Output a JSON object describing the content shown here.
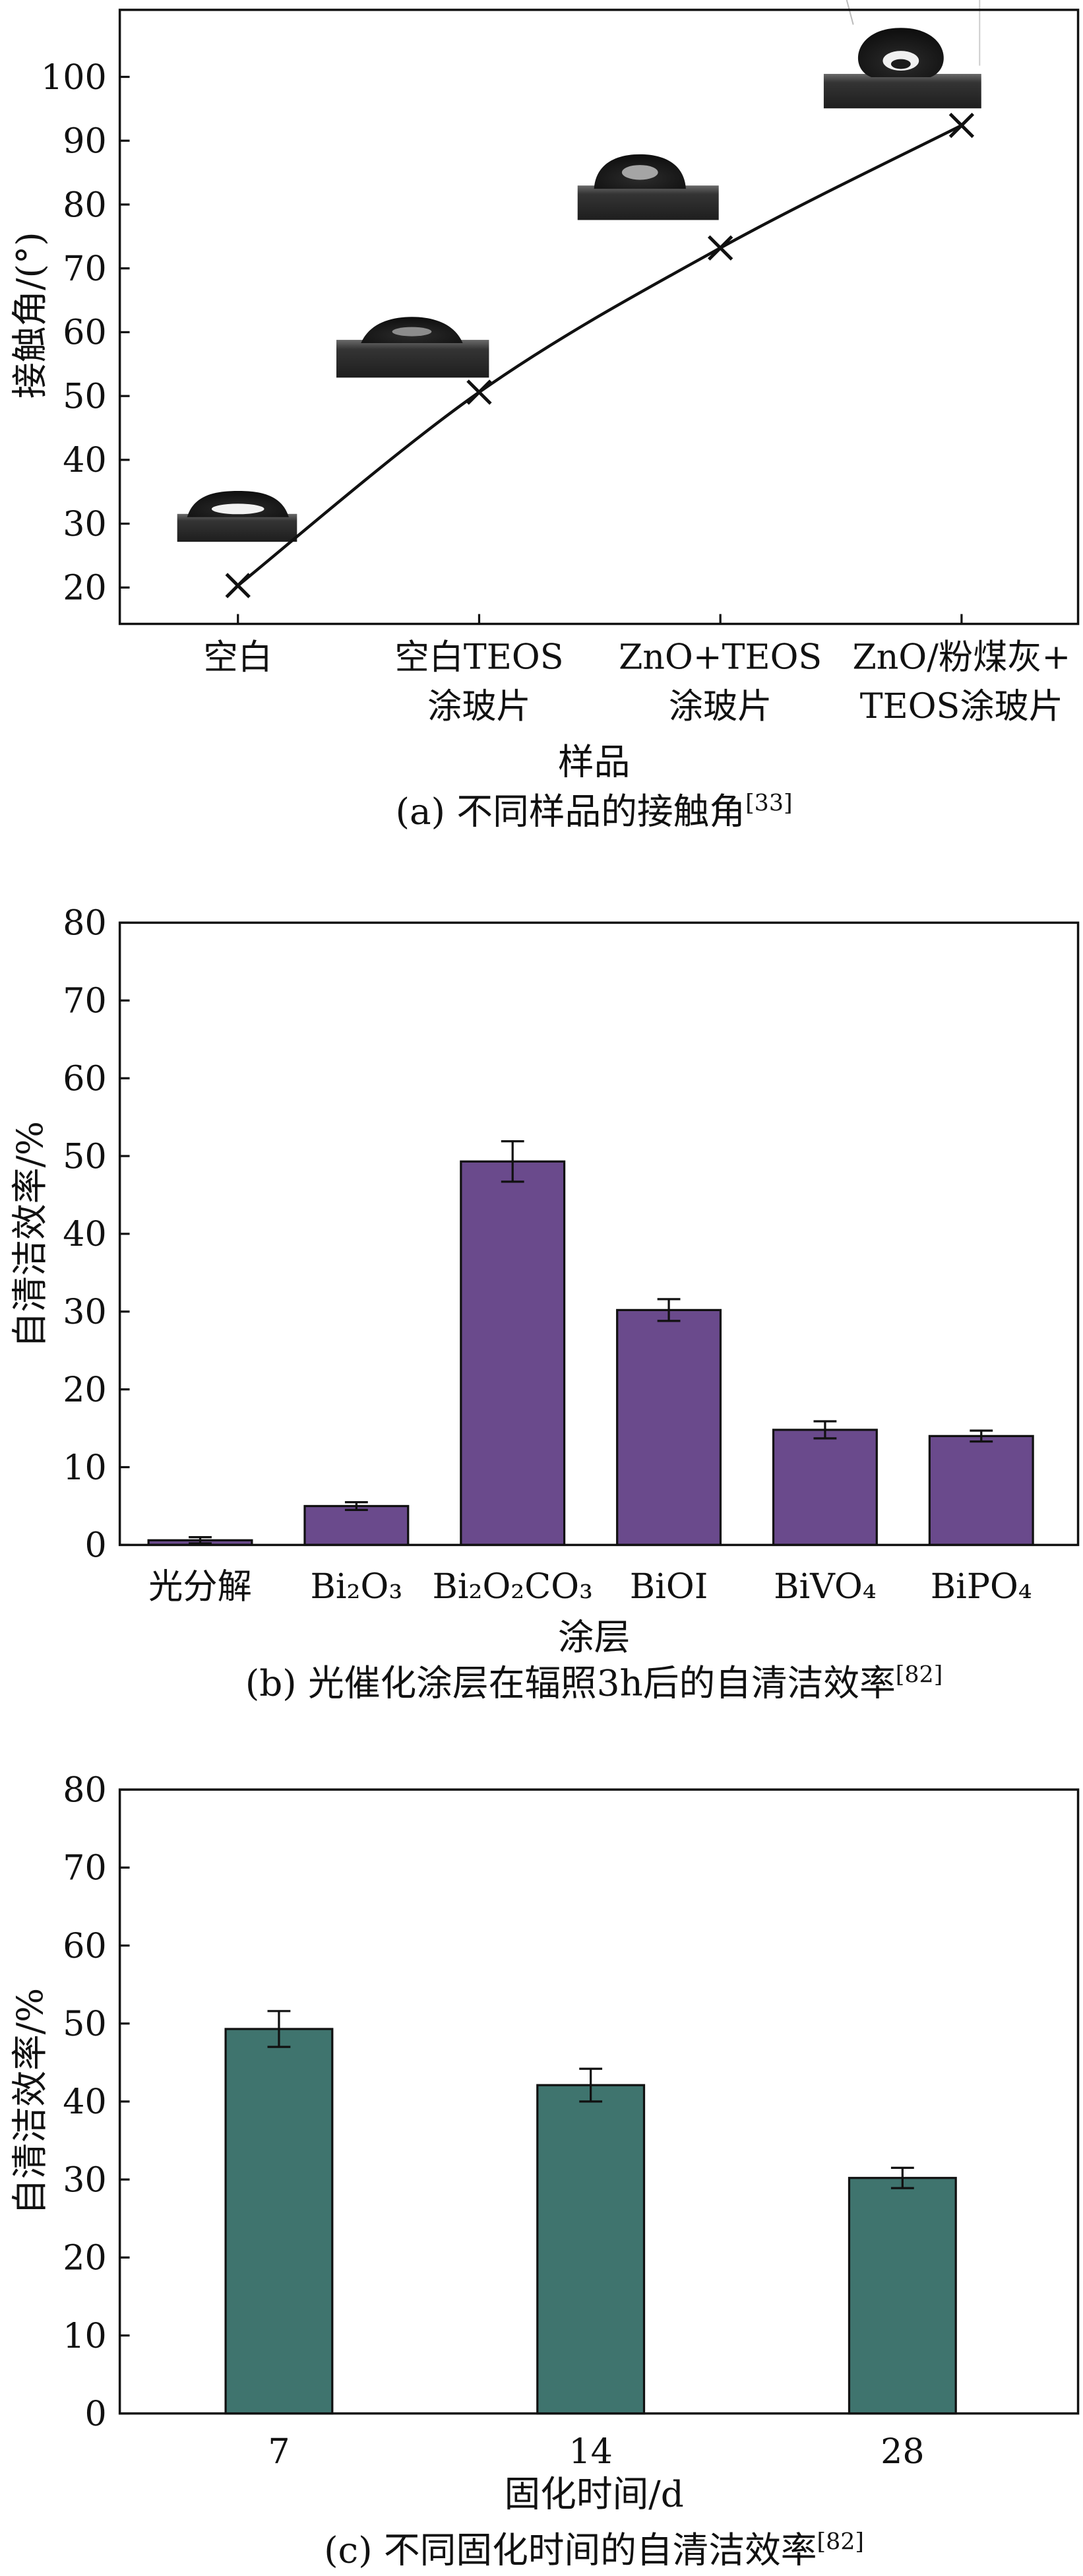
{
  "chart_data": [
    {
      "type": "line",
      "categories": [
        "空白",
        "空白TEOS\n涂玻片",
        "ZnO+TEOS\n涂玻片",
        "ZnO/粉煤灰+\nTEOS涂玻片"
      ],
      "values": [
        20.3,
        50.6,
        73.2,
        92.4
      ],
      "ylabel": "接触角/(°)",
      "xlabel": "样品",
      "ylim": [
        14.3,
        110.5
      ],
      "yticks": [
        20,
        30,
        40,
        50,
        60,
        70,
        80,
        90,
        100
      ],
      "grid": false,
      "caption": "(a) 不同样品的接触角",
      "caption_ref": "[33]"
    },
    {
      "type": "bar",
      "categories": [
        "光分解",
        "Bi₂O₃",
        "Bi₂O₂CO₃",
        "BiOI",
        "BiVO₄",
        "BiPO₄"
      ],
      "values": [
        0.6,
        5.0,
        49.3,
        30.2,
        14.8,
        14.0
      ],
      "errors": [
        0.4,
        0.5,
        2.6,
        1.4,
        1.1,
        0.7
      ],
      "ylabel": "自清洁效率/%",
      "xlabel": "涂层",
      "ylim": [
        0,
        80
      ],
      "yticks": [
        0,
        10,
        20,
        30,
        40,
        50,
        60,
        70,
        80
      ],
      "grid": false,
      "bar_color": "#6a4a8c",
      "caption": "(b) 光催化涂层在辐照3h后的自清洁效率",
      "caption_ref": "[82]"
    },
    {
      "type": "bar",
      "categories": [
        "7",
        "14",
        "28"
      ],
      "values": [
        49.3,
        42.1,
        30.2
      ],
      "errors": [
        2.3,
        2.1,
        1.3
      ],
      "ylabel": "自清洁效率/%",
      "xlabel": "固化时间/d",
      "ylim": [
        0,
        80
      ],
      "yticks": [
        0,
        10,
        20,
        30,
        40,
        50,
        60,
        70,
        80
      ],
      "grid": false,
      "bar_color": "#3f746e",
      "caption": "(c) 不同固化时间的自清洁效率",
      "caption_ref": "[82]"
    }
  ]
}
